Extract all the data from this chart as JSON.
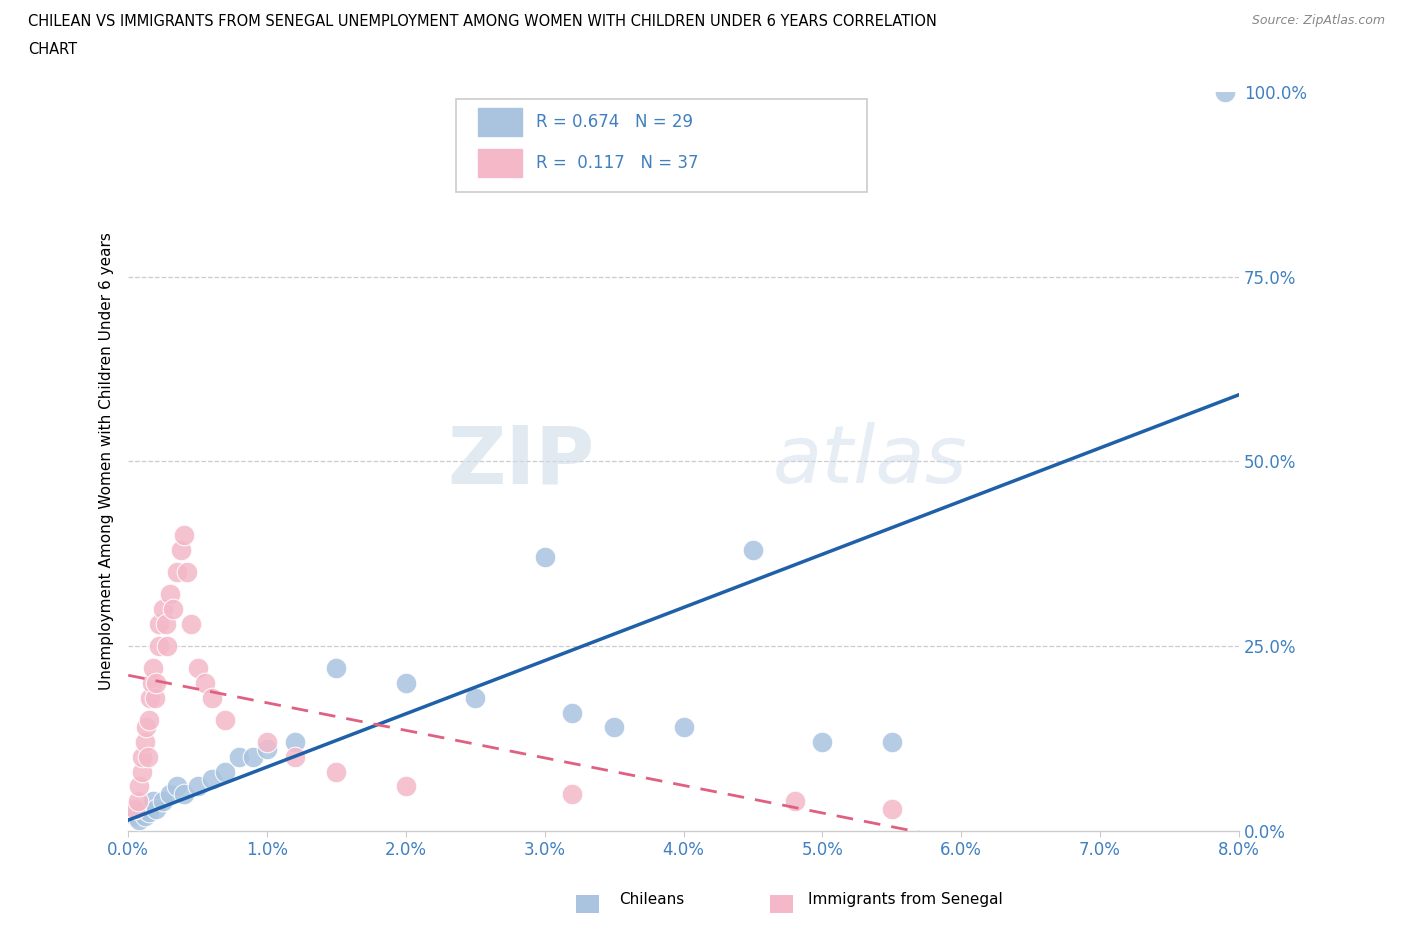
{
  "title_line1": "CHILEAN VS IMMIGRANTS FROM SENEGAL UNEMPLOYMENT AMONG WOMEN WITH CHILDREN UNDER 6 YEARS CORRELATION",
  "title_line2": "CHART",
  "source": "Source: ZipAtlas.com",
  "ylabel": "Unemployment Among Women with Children Under 6 years",
  "ytick_labels": [
    "0.0%",
    "25.0%",
    "50.0%",
    "75.0%",
    "100.0%"
  ],
  "ytick_values": [
    0,
    25,
    50,
    75,
    100
  ],
  "xtick_labels": [
    "0.0%",
    "1.0%",
    "2.0%",
    "3.0%",
    "4.0%",
    "5.0%",
    "6.0%",
    "7.0%",
    "8.0%"
  ],
  "xtick_values": [
    0,
    1,
    2,
    3,
    4,
    5,
    6,
    7,
    8
  ],
  "xlim": [
    0,
    8
  ],
  "ylim": [
    0,
    100
  ],
  "R_chilean": 0.674,
  "N_chilean": 29,
  "R_senegal": 0.117,
  "N_senegal": 37,
  "chilean_color": "#aac4e0",
  "chilean_line_color": "#2060a8",
  "senegal_color": "#f4b8c8",
  "senegal_line_color": "#e06080",
  "tick_color": "#4080c0",
  "legend_label_chilean": "Chileans",
  "legend_label_senegal": "Immigrants from Senegal",
  "watermark_zip": "ZIP",
  "watermark_atlas": "atlas",
  "chilean_x": [
    0.05,
    0.08,
    0.1,
    0.12,
    0.15,
    0.18,
    0.2,
    0.25,
    0.3,
    0.35,
    0.4,
    0.5,
    0.6,
    0.7,
    0.8,
    0.9,
    1.0,
    1.2,
    1.5,
    2.0,
    2.5,
    3.0,
    3.2,
    3.5,
    4.0,
    4.5,
    5.0,
    5.5,
    7.9
  ],
  "chilean_y": [
    2,
    1.5,
    3,
    2,
    2.5,
    4,
    3,
    4,
    5,
    6,
    5,
    6,
    7,
    8,
    10,
    10,
    11,
    12,
    22,
    20,
    18,
    37,
    16,
    14,
    14,
    38,
    12,
    12,
    100
  ],
  "senegal_x": [
    0.05,
    0.07,
    0.08,
    0.1,
    0.1,
    0.12,
    0.13,
    0.14,
    0.15,
    0.16,
    0.17,
    0.18,
    0.19,
    0.2,
    0.22,
    0.22,
    0.25,
    0.27,
    0.28,
    0.3,
    0.32,
    0.35,
    0.38,
    0.4,
    0.42,
    0.45,
    0.5,
    0.55,
    0.6,
    0.7,
    1.0,
    1.2,
    1.5,
    2.0,
    3.2,
    4.8,
    5.5
  ],
  "senegal_y": [
    3,
    4,
    6,
    8,
    10,
    12,
    14,
    10,
    15,
    18,
    20,
    22,
    18,
    20,
    25,
    28,
    30,
    28,
    25,
    32,
    30,
    35,
    38,
    40,
    35,
    28,
    22,
    20,
    18,
    15,
    12,
    10,
    8,
    6,
    5,
    4,
    3
  ]
}
